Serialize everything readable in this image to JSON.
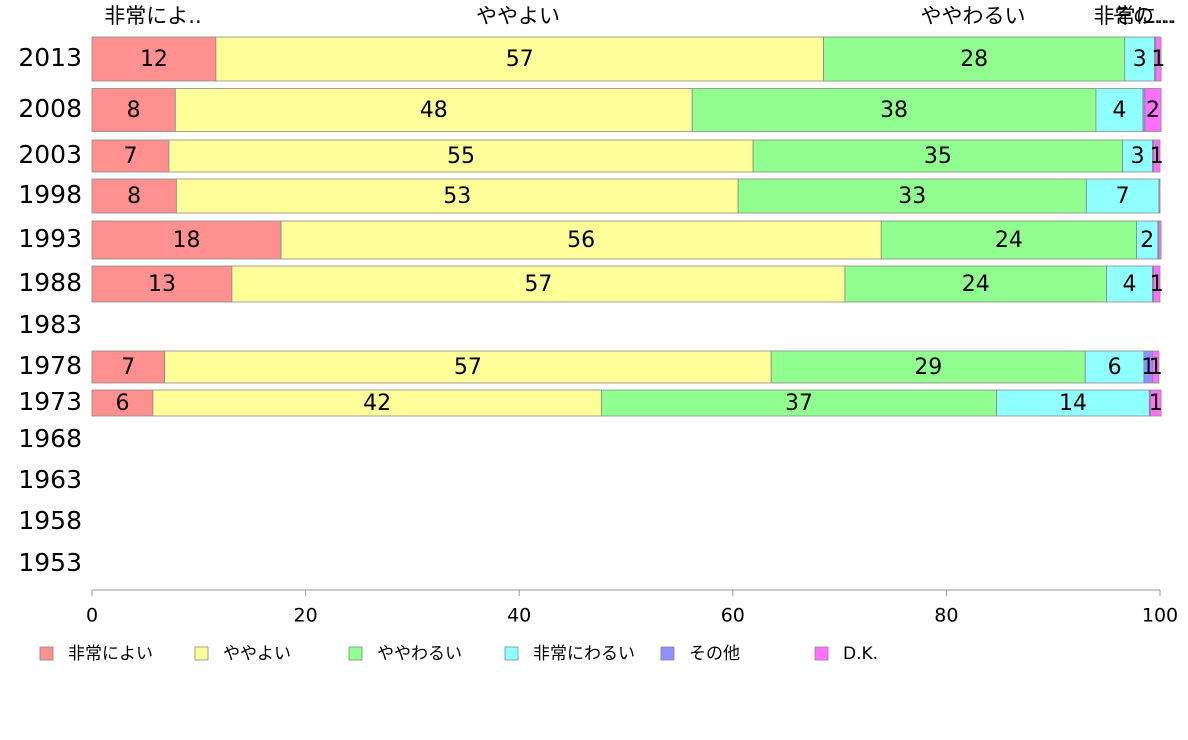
{
  "chart_data": {
    "type": "bar",
    "orientation": "horizontal",
    "stacked": true,
    "title": "",
    "xlabel": "",
    "ylabel": "",
    "xlim": [
      0,
      100
    ],
    "x_ticks": [
      "0",
      "20",
      "40",
      "60",
      "80",
      "100"
    ],
    "categories": [
      "2013",
      "2008",
      "2003",
      "1998",
      "1993",
      "1988",
      "1983",
      "1978",
      "1973",
      "1968",
      "1963",
      "1958",
      "1953"
    ],
    "series": [
      {
        "name": "非常によい",
        "color": "#ff9090",
        "values": [
          11.6,
          7.8,
          7.2,
          7.9,
          17.7,
          13.1,
          null,
          6.8,
          5.7,
          null,
          null,
          null,
          null
        ]
      },
      {
        "name": "ややよい",
        "color": "#ffff99",
        "values": [
          56.9,
          48.4,
          54.7,
          52.6,
          56.2,
          57.4,
          null,
          56.8,
          42.0,
          null,
          null,
          null,
          null
        ]
      },
      {
        "name": "ややわるい",
        "color": "#90ff90",
        "values": [
          28.2,
          37.8,
          34.6,
          32.6,
          23.9,
          24.5,
          null,
          29.4,
          37.0,
          null,
          null,
          null,
          null
        ]
      },
      {
        "name": "非常にわるい",
        "color": "#90ffff",
        "values": [
          2.8,
          4.4,
          2.8,
          6.8,
          2.0,
          4.3,
          null,
          5.5,
          14.3,
          null,
          null,
          null,
          null
        ]
      },
      {
        "name": "その他",
        "color": "#9090ff",
        "values": [
          0.1,
          0.2,
          0.1,
          0.0,
          0.1,
          0.1,
          null,
          0.8,
          0.1,
          null,
          null,
          null,
          null
        ]
      },
      {
        "name": "D.K.",
        "color": "#ff70ff",
        "values": [
          0.5,
          1.5,
          0.6,
          0.1,
          0.2,
          0.6,
          null,
          0.6,
          1.0,
          null,
          null,
          null,
          null
        ]
      }
    ],
    "data_labels": [
      [
        "12",
        "57",
        "28",
        "3",
        "",
        "1"
      ],
      [
        "8",
        "48",
        "38",
        "4",
        "",
        "2"
      ],
      [
        "7",
        "55",
        "35",
        "3",
        "",
        "1"
      ],
      [
        "8",
        "53",
        "33",
        "7",
        "",
        ""
      ],
      [
        "18",
        "56",
        "24",
        "2",
        "",
        ""
      ],
      [
        "13",
        "57",
        "24",
        "4",
        "",
        "1"
      ],
      [
        "",
        "",
        "",
        "",
        "",
        ""
      ],
      [
        "7",
        "57",
        "29",
        "6",
        "1",
        "1"
      ],
      [
        "6",
        "42",
        "37",
        "14",
        "",
        "1"
      ],
      [
        "",
        "",
        "",
        "",
        "",
        ""
      ],
      [
        "",
        "",
        "",
        "",
        "",
        ""
      ],
      [
        "",
        "",
        "",
        "",
        "",
        ""
      ],
      [
        "",
        "",
        "",
        "",
        "",
        ""
      ]
    ],
    "top_labels": [
      "非常によ..",
      "ややよい",
      "ややわるい",
      "非常に...",
      "その..."
    ],
    "legend": [
      "非常によい",
      "ややよい",
      "ややわるい",
      "非常にわるい",
      "その他",
      "D.K."
    ],
    "legend_position": "bottom",
    "grid": false
  }
}
